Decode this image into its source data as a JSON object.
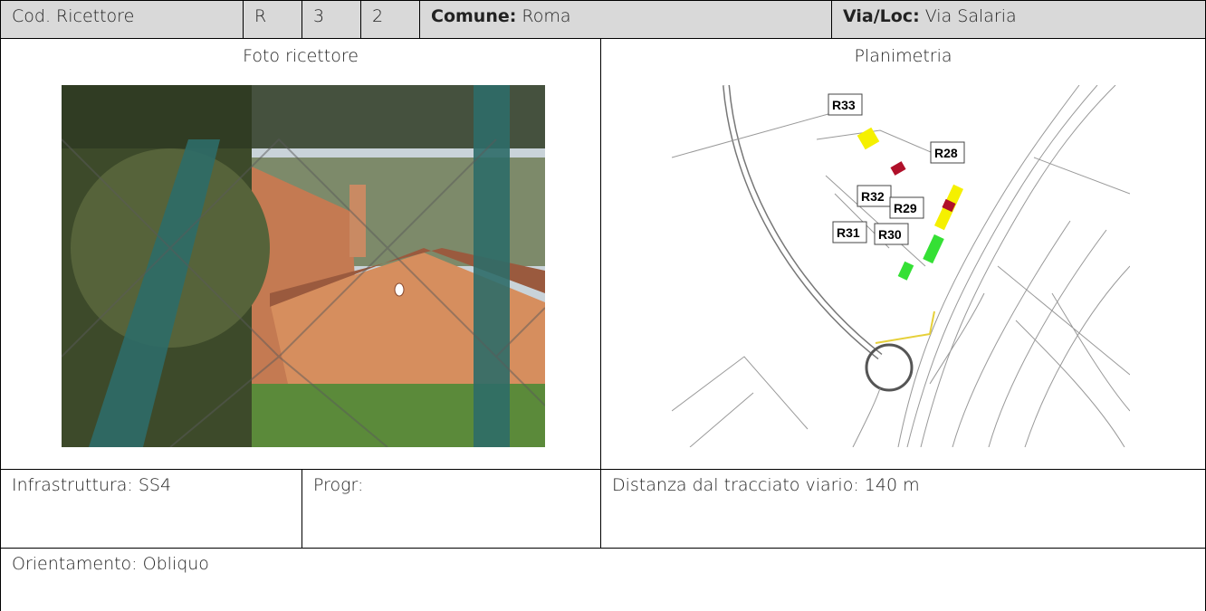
{
  "header": {
    "code_label": "Cod. Ricettore",
    "code_parts": [
      "R",
      "3",
      "2"
    ],
    "comune": {
      "label": "Comune:",
      "value": "Roma"
    },
    "via": {
      "label": "Via/Loc:",
      "value": "Via Salaria"
    }
  },
  "photo": {
    "title": "Foto ricettore"
  },
  "map": {
    "title": "Planimetria",
    "labels": [
      "R33",
      "R28",
      "R32",
      "R29",
      "R31",
      "R30"
    ]
  },
  "details": {
    "infrastruttura": "Infrastruttura: SS4",
    "progr": "Progr:",
    "distanza": "Distanza dal tracciato viario: 140 m",
    "orientamento": "Orientamento: Obliquo"
  }
}
